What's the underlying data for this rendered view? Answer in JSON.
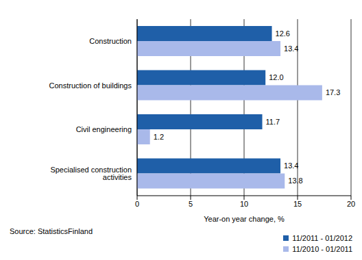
{
  "chart_data": {
    "type": "bar",
    "orientation": "horizontal",
    "categories": [
      "Construction",
      "Construction of buildings",
      "Civil engineering",
      "Specialised construction activities"
    ],
    "series": [
      {
        "name": "11/2011 - 01/2012",
        "color": "#1f5fa8",
        "values": [
          12.6,
          12.0,
          11.7,
          13.4
        ],
        "value_labels": [
          "12.6",
          "12.0",
          "11.7",
          "13.4"
        ]
      },
      {
        "name": "11/2010 - 01/2011",
        "color": "#a9b9ea",
        "values": [
          13.4,
          17.3,
          1.2,
          13.8
        ],
        "value_labels": [
          "13.4",
          "17.3",
          "1.2",
          "13.8"
        ]
      }
    ],
    "x_label": "Year-on year change, %",
    "xlim": [
      0,
      20
    ],
    "xticks": [
      0,
      5,
      10,
      15,
      20
    ],
    "grid": true,
    "data_labels": true,
    "legend": "bottom right",
    "annotations": [
      "Source: StatisticsFinland"
    ]
  }
}
